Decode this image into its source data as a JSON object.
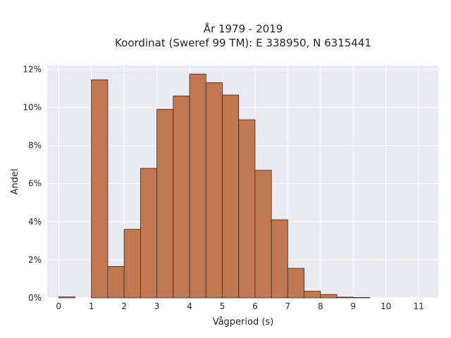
{
  "chart_data": {
    "type": "bar",
    "title_line1": "År 1979 - 2019",
    "title_line2": "Koordinat (Sweref 99 TM): E 338950, N 6315441",
    "xlabel": "Vågperiod (s)",
    "ylabel": "Andel",
    "bin_width": 0.5,
    "bins": [
      {
        "x": 0.0,
        "value": 0.05
      },
      {
        "x": 1.0,
        "value": 11.45
      },
      {
        "x": 1.5,
        "value": 1.65
      },
      {
        "x": 2.0,
        "value": 3.6
      },
      {
        "x": 2.5,
        "value": 6.8
      },
      {
        "x": 3.0,
        "value": 9.9
      },
      {
        "x": 3.5,
        "value": 10.6
      },
      {
        "x": 4.0,
        "value": 11.75
      },
      {
        "x": 4.5,
        "value": 11.3
      },
      {
        "x": 5.0,
        "value": 10.65
      },
      {
        "x": 5.5,
        "value": 9.35
      },
      {
        "x": 6.0,
        "value": 6.7
      },
      {
        "x": 6.5,
        "value": 4.1
      },
      {
        "x": 7.0,
        "value": 1.55
      },
      {
        "x": 7.5,
        "value": 0.35
      },
      {
        "x": 8.0,
        "value": 0.18
      },
      {
        "x": 8.5,
        "value": 0.04
      },
      {
        "x": 9.0,
        "value": 0.02
      }
    ],
    "xlim": [
      -0.35,
      11.6
    ],
    "ylim": [
      0,
      12.2
    ],
    "x_ticks": [
      0,
      1,
      2,
      3,
      4,
      5,
      6,
      7,
      8,
      9,
      10,
      11
    ],
    "y_ticks": [
      0,
      2,
      4,
      6,
      8,
      10,
      12
    ],
    "y_tick_suffix": "%",
    "grid": true,
    "legend": "none",
    "colors": {
      "bar_fill": "#c07850",
      "bar_edge": "#3a2a20",
      "plot_bg": "#eaeaf2",
      "grid": "#ffffff"
    }
  }
}
